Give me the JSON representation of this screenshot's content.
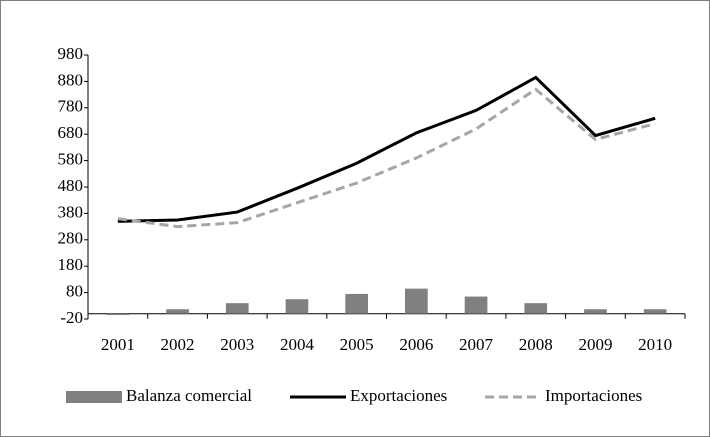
{
  "chart_data": {
    "type": "bar-line",
    "categories": [
      "2001",
      "2002",
      "2003",
      "2004",
      "2005",
      "2006",
      "2007",
      "2008",
      "2009",
      "2010"
    ],
    "series": [
      {
        "name": "Balanza comercial",
        "type": "bar",
        "color": "#808080",
        "values": [
          -5,
          17,
          40,
          55,
          75,
          95,
          65,
          40,
          17,
          17
        ]
      },
      {
        "name": "Exportaciones",
        "type": "line",
        "color": "#000000",
        "dash": false,
        "values": [
          350,
          355,
          385,
          475,
          570,
          685,
          770,
          895,
          675,
          740
        ]
      },
      {
        "name": "Importaciones",
        "type": "line",
        "color": "#a6a6a6",
        "dash": true,
        "values": [
          360,
          330,
          345,
          420,
          495,
          590,
          700,
          850,
          660,
          720
        ]
      }
    ],
    "ylim": [
      -20,
      980
    ],
    "yticks": [
      -20,
      80,
      180,
      280,
      380,
      480,
      580,
      680,
      780,
      880,
      980
    ],
    "grid": false,
    "legend": "bottom"
  }
}
